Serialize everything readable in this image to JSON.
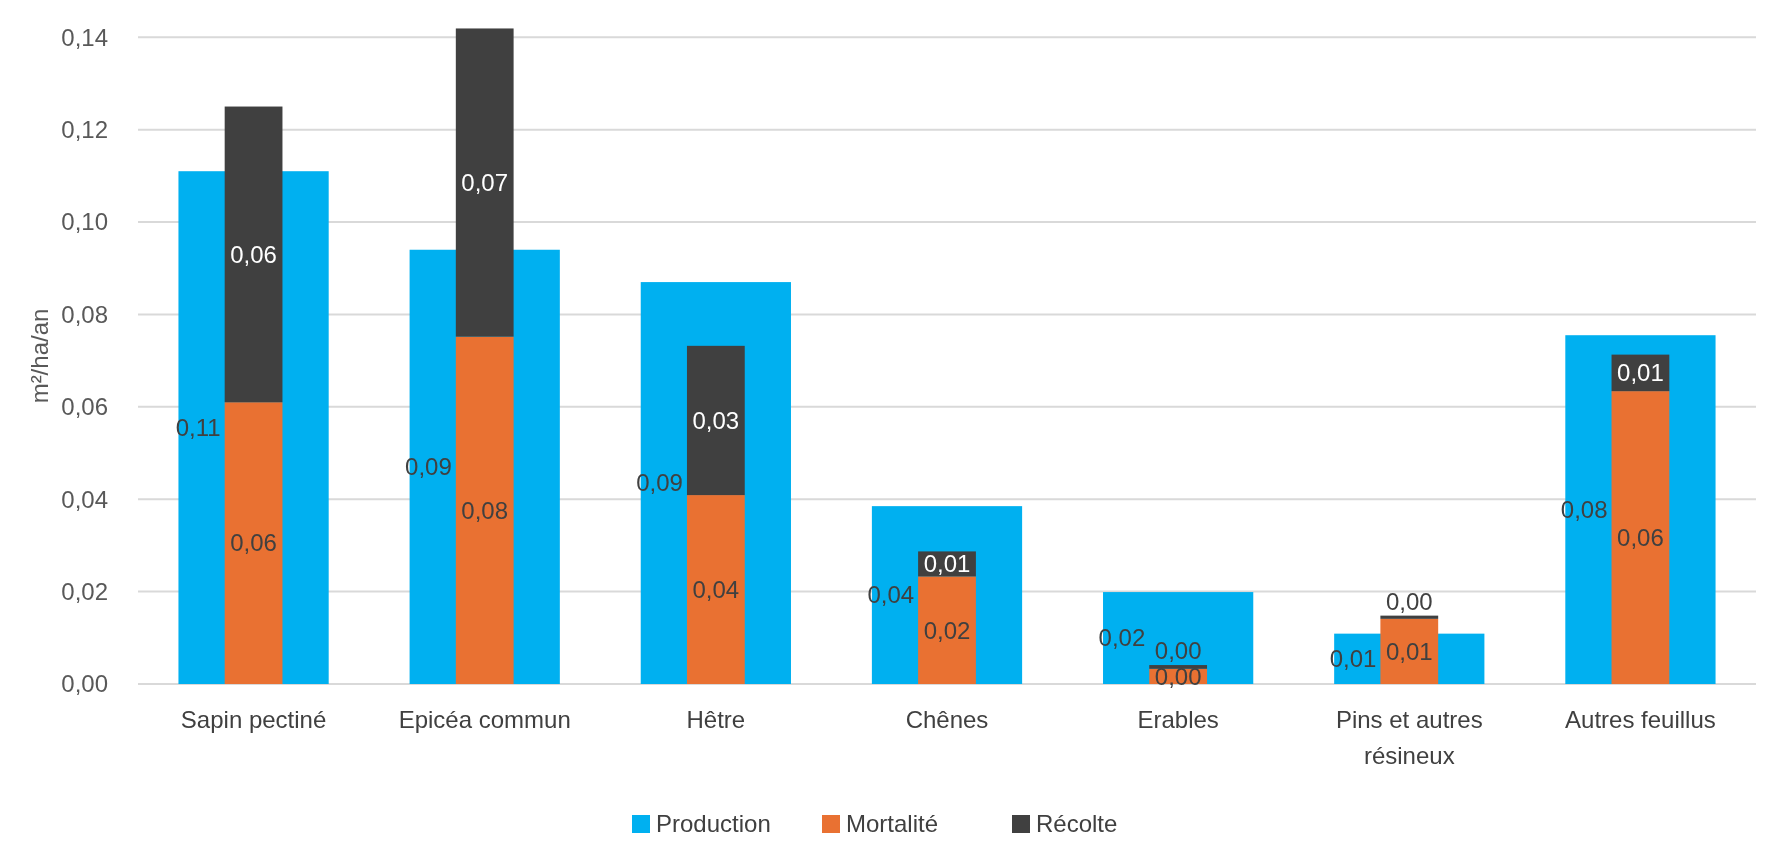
{
  "chart_data": {
    "type": "bar",
    "ylabel": "m²/ha/an",
    "categories": [
      "Sapin pectiné",
      "Epicéa commun",
      "Hêtre",
      "Chênes",
      "Erables",
      "Pins et autres résineux",
      "Autres feuillus"
    ],
    "series": [
      {
        "name": "Production",
        "color": "#00b0f0",
        "values": [
          0.111,
          0.094,
          0.087,
          0.0385,
          0.0199,
          0.0109,
          0.0755
        ],
        "axis": "y2",
        "value_labels": [
          "0,11",
          "0,09",
          "0,09",
          "0,04",
          "0,02",
          "0,01",
          "0,08"
        ]
      },
      {
        "name": "Mortalité",
        "color": "#e97132",
        "values": [
          0.061,
          0.0752,
          0.0409,
          0.0233,
          0.0033,
          0.0141,
          0.0634
        ],
        "value_labels": [
          "0,06",
          "0,08",
          "0,04",
          "0,02",
          "0,00",
          "0,01",
          "0,06"
        ]
      },
      {
        "name": "Récolte",
        "color": "#404040",
        "values": [
          0.064,
          0.0667,
          0.0323,
          0.0054,
          0.0008,
          0.0007,
          0.0079
        ],
        "value_labels": [
          "0,06",
          "0,07",
          "0,03",
          "0,01",
          "0,00",
          "0,00",
          "0,01"
        ]
      }
    ],
    "stacked": true,
    "ylim": [
      0,
      0.142
    ],
    "y2lim": [
      0,
      0.142
    ],
    "yticks": [
      {
        "value": 0,
        "label": "0,00"
      },
      {
        "value": 0.02,
        "label": "0,02"
      },
      {
        "value": 0.04,
        "label": "0,04"
      },
      {
        "value": 0.06,
        "label": "0,06"
      },
      {
        "value": 0.08,
        "label": "0,08"
      },
      {
        "value": 0.1,
        "label": "0,10"
      },
      {
        "value": 0.12,
        "label": "0,12"
      },
      {
        "value": 0.14,
        "label": "0,14"
      }
    ],
    "grid": "y",
    "legend": "bottom"
  }
}
